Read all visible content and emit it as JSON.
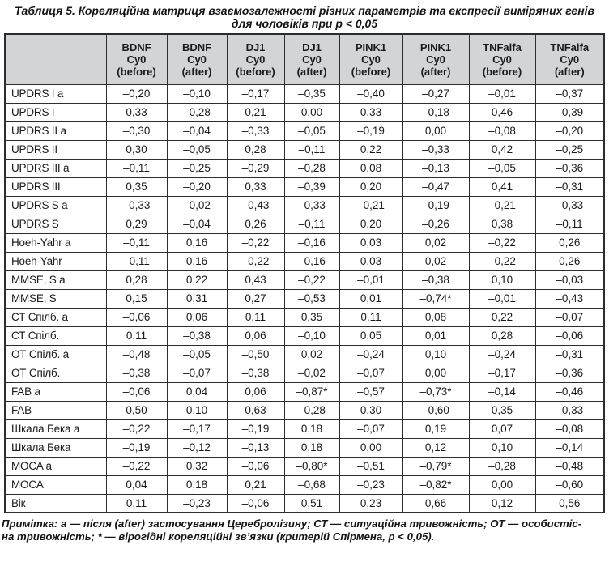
{
  "title": {
    "line1": "Таблиця 5. Кореляційна матриця взаємозалежності різних параметрів та експресії виміряних генів",
    "line2": "для чоловіків при p < 0,05"
  },
  "table": {
    "corner_label": "",
    "columns": [
      {
        "lines": [
          "BDNF",
          "Cy0",
          "(before)"
        ]
      },
      {
        "lines": [
          "BDNF",
          "Cy0",
          "(after)"
        ]
      },
      {
        "lines": [
          "DJ1",
          "Cy0",
          "(before)"
        ]
      },
      {
        "lines": [
          "DJ1",
          "Cy0",
          "(after)"
        ]
      },
      {
        "lines": [
          "PINK1",
          "Cy0",
          "(before)"
        ]
      },
      {
        "lines": [
          "PINK1",
          "Cy0",
          "(after)"
        ]
      },
      {
        "lines": [
          "TNFalfa",
          "Cy0",
          "(before)"
        ]
      },
      {
        "lines": [
          "TNFalfa",
          "Cy0",
          "(after)"
        ]
      }
    ],
    "rows": [
      {
        "label": "UPDRS I a",
        "values": [
          "–0,20",
          "–0,10",
          "–0,17",
          "–0,35",
          "–0,40",
          "–0,27",
          "–0,01",
          "–0,37"
        ]
      },
      {
        "label": "UPDRS I",
        "values": [
          "0,33",
          "–0,28",
          "0,21",
          "0,00",
          "0,33",
          "–0,18",
          "0,46",
          "–0,39"
        ]
      },
      {
        "label": "UPDRS II a",
        "values": [
          "–0,30",
          "–0,04",
          "–0,33",
          "–0,05",
          "–0,19",
          "0,00",
          "–0,08",
          "–0,20"
        ]
      },
      {
        "label": "UPDRS II",
        "values": [
          "0,30",
          "–0,05",
          "0,28",
          "–0,11",
          "0,22",
          "–0,33",
          "0,42",
          "–0,25"
        ]
      },
      {
        "label": "UPDRS III a",
        "values": [
          "–0,11",
          "–0,25",
          "–0,29",
          "–0,28",
          "0,08",
          "–0,13",
          "–0,05",
          "–0,36"
        ]
      },
      {
        "label": "UPDRS III",
        "values": [
          "0,35",
          "–0,20",
          "0,33",
          "–0,39",
          "0,20",
          "–0,47",
          "0,41",
          "–0,31"
        ]
      },
      {
        "label": "UPDRS S a",
        "values": [
          "–0,33",
          "–0,02",
          "–0,43",
          "–0,33",
          "–0,21",
          "–0,19",
          "–0,21",
          "–0,33"
        ]
      },
      {
        "label": "UPDRS S",
        "values": [
          "0,29",
          "–0,04",
          "0,26",
          "–0,11",
          "0,20",
          "–0,26",
          "0,38",
          "–0,11"
        ]
      },
      {
        "label": "Hoeh-Yahr a",
        "values": [
          "–0,11",
          "0,16",
          "–0,22",
          "–0,16",
          "0,03",
          "0,02",
          "–0,22",
          "0,26"
        ]
      },
      {
        "label": "Hoeh-Yahr",
        "values": [
          "–0,11",
          "0,16",
          "–0,22",
          "–0,16",
          "0,03",
          "0,02",
          "–0,22",
          "0,26"
        ]
      },
      {
        "label": "MMSE, S a",
        "values": [
          "0,28",
          "0,22",
          "0,43",
          "–0,22",
          "–0,01",
          "–0,38",
          "0,10",
          "–0,03"
        ]
      },
      {
        "label": "MMSE, S",
        "values": [
          "0,15",
          "0,31",
          "0,27",
          "–0,53",
          "0,01",
          "–0,74*",
          "–0,01",
          "–0,43"
        ]
      },
      {
        "label": "СТ Спілб. а",
        "values": [
          "–0,06",
          "0,06",
          "0,11",
          "0,35",
          "0,11",
          "0,08",
          "0,22",
          "–0,07"
        ]
      },
      {
        "label": "СТ Спілб.",
        "values": [
          "0,11",
          "–0,38",
          "0,06",
          "–0,10",
          "0,05",
          "0,01",
          "0,28",
          "–0,06"
        ]
      },
      {
        "label": "ОТ Спілб. а",
        "values": [
          "–0,48",
          "–0,05",
          "–0,50",
          "0,02",
          "–0,24",
          "0,10",
          "–0,24",
          "–0,31"
        ]
      },
      {
        "label": "ОТ Спілб.",
        "values": [
          "–0,38",
          "–0,07",
          "–0,38",
          "–0,02",
          "–0,07",
          "0,00",
          "–0,17",
          "–0,36"
        ]
      },
      {
        "label": "FAB a",
        "values": [
          "–0,06",
          "0,04",
          "0,06",
          "–0,87*",
          "–0,57",
          "–0,73*",
          "–0,14",
          "–0,46"
        ]
      },
      {
        "label": "FAB",
        "values": [
          "0,50",
          "0,10",
          "0,63",
          "–0,28",
          "0,30",
          "–0,60",
          "0,35",
          "–0,33"
        ]
      },
      {
        "label": "Шкала Бека а",
        "values": [
          "–0,22",
          "–0,17",
          "–0,19",
          "0,18",
          "–0,07",
          "0,19",
          "0,07",
          "–0,08"
        ]
      },
      {
        "label": "Шкала Бека",
        "values": [
          "–0,19",
          "–0,12",
          "–0,13",
          "0,18",
          "0,00",
          "0,12",
          "0,10",
          "–0,14"
        ]
      },
      {
        "label": "MOCA a",
        "values": [
          "–0,22",
          "0,32",
          "–0,06",
          "–0,80*",
          "–0,51",
          "–0,79*",
          "–0,28",
          "–0,48"
        ]
      },
      {
        "label": "MOCA",
        "values": [
          "0,04",
          "0,18",
          "0,21",
          "–0,68",
          "–0,23",
          "–0,82*",
          "0,00",
          "–0,60"
        ]
      },
      {
        "label": "Вік",
        "values": [
          "0,11",
          "–0,23",
          "–0,06",
          "0,51",
          "0,23",
          "0,66",
          "0,12",
          "0,56"
        ]
      }
    ]
  },
  "footnote": {
    "line1": "Примітка: а — після (after) застосування Церебролізину; СТ — ситуаційна тривожність; ОТ — особистіс-",
    "line2": "на тривожність; * — вірогідні кореляційні зв’язки (критерій Спірмена, p < 0,05)."
  },
  "colors": {
    "header_background": "#d3d4d6",
    "border": "#2d2d2f",
    "text": "#141414",
    "page_background": "#ffffff"
  }
}
